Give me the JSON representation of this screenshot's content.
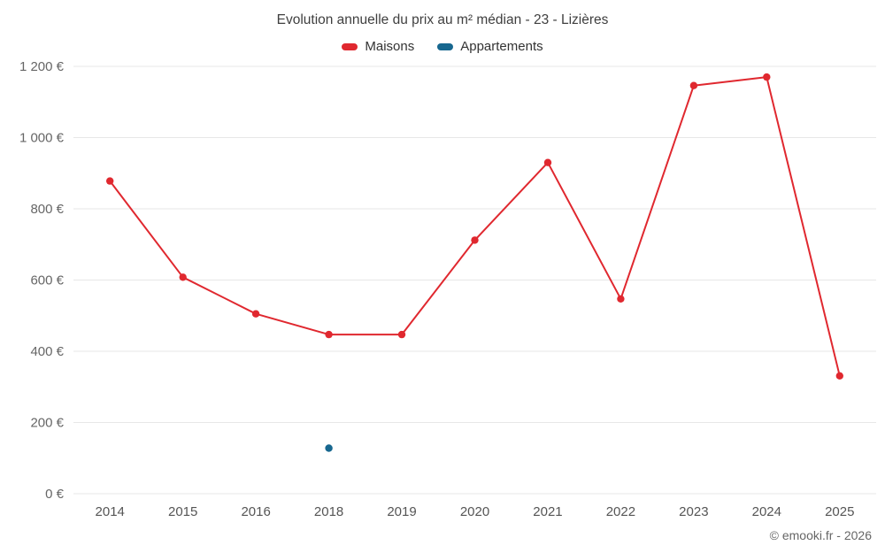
{
  "chart_data": {
    "type": "line",
    "title": "Evolution annuelle du prix au m² médian - 23 - Lizières",
    "categories": [
      "2014",
      "2015",
      "2016",
      "2018",
      "2019",
      "2020",
      "2021",
      "2022",
      "2023",
      "2024",
      "2025"
    ],
    "series": [
      {
        "name": "Maisons",
        "color": "#e0282f",
        "values": [
          878,
          608,
          505,
          447,
          447,
          712,
          930,
          547,
          1146,
          1170,
          331
        ]
      },
      {
        "name": "Appartements",
        "color": "#17678f",
        "values": [
          null,
          null,
          null,
          128,
          null,
          null,
          null,
          null,
          null,
          null,
          null
        ]
      }
    ],
    "ylim": [
      0,
      1200
    ],
    "ytick_step": 200,
    "ytick_labels": [
      "0 €",
      "200 €",
      "400 €",
      "600 €",
      "800 €",
      "1 000 €",
      "1 200 €"
    ],
    "grid": "horizontal",
    "legend_position": "top",
    "footer": "© emooki.fr - 2026"
  }
}
